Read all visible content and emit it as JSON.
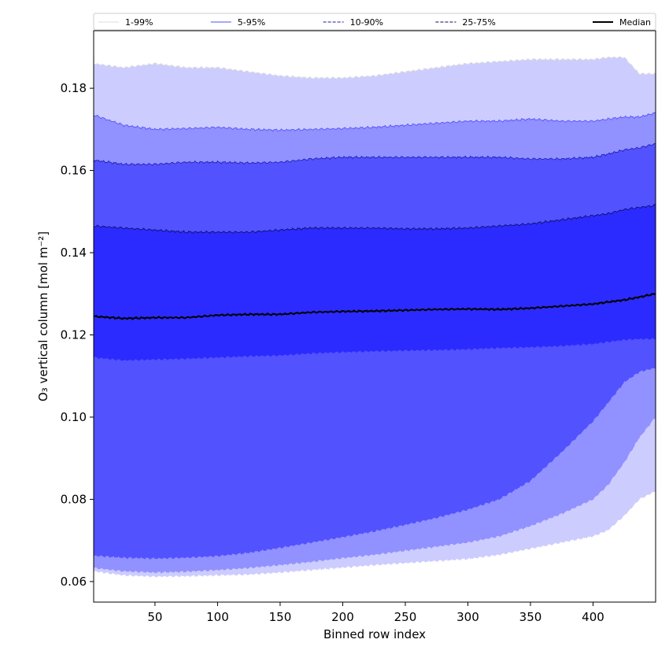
{
  "chart_data": {
    "type": "area",
    "xlabel": "Binned row index",
    "ylabel": "O₃ vertical column [mol m⁻²]",
    "xlim": [
      1,
      450
    ],
    "ylim": [
      0.055,
      0.194
    ],
    "xticks": [
      50,
      100,
      150,
      200,
      250,
      300,
      350,
      400
    ],
    "yticks": [
      0.06,
      0.08,
      0.1,
      0.12,
      0.14,
      0.16,
      0.18
    ],
    "ytick_labels": [
      "0.06",
      "0.08",
      "0.10",
      "0.12",
      "0.14",
      "0.16",
      "0.18"
    ],
    "grid": false,
    "legend_position": "top, above plot, single row",
    "x": [
      1,
      25,
      50,
      75,
      100,
      125,
      150,
      175,
      200,
      225,
      250,
      275,
      300,
      325,
      350,
      375,
      400,
      412,
      425,
      437,
      450
    ],
    "bands": [
      {
        "name": "1-99%",
        "color": "#ccccff",
        "line_color": "#dcdcdc",
        "line_style": "solid",
        "lower": [
          0.0625,
          0.0615,
          0.0612,
          0.0613,
          0.0615,
          0.0617,
          0.0622,
          0.0628,
          0.0634,
          0.064,
          0.0645,
          0.065,
          0.0655,
          0.0665,
          0.068,
          0.0695,
          0.071,
          0.0725,
          0.076,
          0.08,
          0.082
        ],
        "upper": [
          0.186,
          0.185,
          0.186,
          0.185,
          0.185,
          0.184,
          0.183,
          0.1825,
          0.1825,
          0.183,
          0.184,
          0.185,
          0.186,
          0.1865,
          0.187,
          0.187,
          0.187,
          0.1875,
          0.1875,
          0.1835,
          0.1835
        ]
      },
      {
        "name": "5-95%",
        "color": "#9191ff",
        "line_color": "#4c4cff",
        "line_style": "solid",
        "lower": [
          0.0633,
          0.0625,
          0.0622,
          0.0624,
          0.0628,
          0.0633,
          0.064,
          0.0648,
          0.0657,
          0.0665,
          0.0675,
          0.0685,
          0.0695,
          0.071,
          0.0735,
          0.0765,
          0.08,
          0.0835,
          0.089,
          0.095,
          0.1
        ],
        "upper": [
          0.1735,
          0.171,
          0.17,
          0.1702,
          0.1705,
          0.17,
          0.1698,
          0.17,
          0.1702,
          0.1705,
          0.171,
          0.1715,
          0.172,
          0.172,
          0.1725,
          0.172,
          0.172,
          0.1725,
          0.173,
          0.173,
          0.174
        ]
      },
      {
        "name": "10-90%",
        "color": "#5252ff",
        "line_color": "#1a1ab3",
        "line_style": "dashed",
        "lower": [
          0.0663,
          0.0658,
          0.0656,
          0.0658,
          0.0662,
          0.067,
          0.0682,
          0.0695,
          0.0708,
          0.0722,
          0.0738,
          0.0755,
          0.0775,
          0.08,
          0.0845,
          0.0915,
          0.099,
          0.1035,
          0.1085,
          0.111,
          0.112
        ],
        "upper": [
          0.1625,
          0.1615,
          0.1615,
          0.162,
          0.162,
          0.1618,
          0.162,
          0.1628,
          0.1632,
          0.1632,
          0.1632,
          0.1632,
          0.1632,
          0.1632,
          0.1628,
          0.1628,
          0.1632,
          0.164,
          0.165,
          0.1655,
          0.1665
        ]
      },
      {
        "name": "25-75%",
        "color": "#2b2bff",
        "line_color": "#0a0a66",
        "line_style": "dashed",
        "lower": [
          0.1145,
          0.1138,
          0.114,
          0.1142,
          0.1145,
          0.1148,
          0.115,
          0.1155,
          0.1158,
          0.116,
          0.1162,
          0.1163,
          0.1165,
          0.1168,
          0.117,
          0.1173,
          0.1178,
          0.1183,
          0.1188,
          0.119,
          0.119
        ],
        "upper": [
          0.1465,
          0.146,
          0.1455,
          0.145,
          0.145,
          0.145,
          0.1455,
          0.146,
          0.146,
          0.146,
          0.1458,
          0.1458,
          0.146,
          0.1465,
          0.147,
          0.148,
          0.149,
          0.1495,
          0.1505,
          0.151,
          0.1515
        ]
      }
    ],
    "series": [
      {
        "name": "Median",
        "color": "#000000",
        "values": [
          0.1245,
          0.124,
          0.1242,
          0.1242,
          0.1248,
          0.125,
          0.125,
          0.1255,
          0.1257,
          0.1258,
          0.126,
          0.1262,
          0.1263,
          0.1262,
          0.1265,
          0.127,
          0.1275,
          0.128,
          0.1285,
          0.1292,
          0.13
        ]
      }
    ]
  }
}
